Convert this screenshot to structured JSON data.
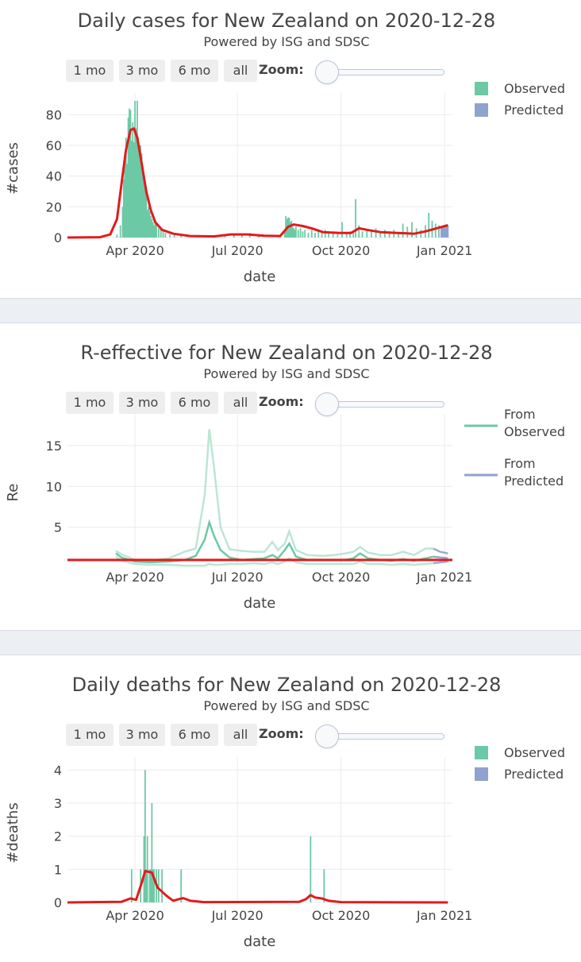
{
  "buttons": [
    "1 mo",
    "3 mo",
    "6 mo",
    "all"
  ],
  "zoom_label": "Zoom:",
  "legend": {
    "bars": [
      "Observed",
      "Predicted"
    ],
    "lines": [
      [
        "From",
        "Observed"
      ],
      [
        "From",
        "Predicted"
      ]
    ]
  },
  "colors": {
    "observed": "#6cc9a5",
    "predicted": "#8fa3cf",
    "fit": "#e31a1c",
    "band": "#b5e3cf"
  },
  "chart_data": [
    {
      "type": "bar",
      "title": "Daily cases for New Zealand on 2020-12-28",
      "subtitle": "Powered by ISG and SDSC",
      "xlabel": "date",
      "ylabel": "#cases",
      "xlim": [
        "2020-02-01",
        "2021-01-08"
      ],
      "ylim": [
        0,
        90
      ],
      "yticks": [
        0,
        20,
        40,
        60,
        80
      ],
      "xticks": [
        "Apr 2020",
        "Jul 2020",
        "Oct 2020",
        "Jan 2021"
      ],
      "grid": true,
      "legend_position": "top-right",
      "series": [
        {
          "name": "Observed",
          "points": [
            [
              "2020-03-16",
              2
            ],
            [
              "2020-03-19",
              8
            ],
            [
              "2020-03-21",
              20
            ],
            [
              "2020-03-22",
              38
            ],
            [
              "2020-03-23",
              55
            ],
            [
              "2020-03-24",
              65
            ],
            [
              "2020-03-25",
              48
            ],
            [
              "2020-03-26",
              78
            ],
            [
              "2020-03-27",
              84
            ],
            [
              "2020-03-28",
              83
            ],
            [
              "2020-03-29",
              63
            ],
            [
              "2020-03-30",
              75
            ],
            [
              "2020-03-31",
              62
            ],
            [
              "2020-04-01",
              89
            ],
            [
              "2020-04-02",
              71
            ],
            [
              "2020-04-03",
              89
            ],
            [
              "2020-04-04",
              65
            ],
            [
              "2020-04-05",
              58
            ],
            [
              "2020-04-06",
              60
            ],
            [
              "2020-04-07",
              55
            ],
            [
              "2020-04-08",
              44
            ],
            [
              "2020-04-09",
              36
            ],
            [
              "2020-04-10",
              33
            ],
            [
              "2020-04-11",
              32
            ],
            [
              "2020-04-12",
              18
            ],
            [
              "2020-04-13",
              20
            ],
            [
              "2020-04-14",
              17
            ],
            [
              "2020-04-15",
              14
            ],
            [
              "2020-04-16",
              12
            ],
            [
              "2020-04-17",
              10
            ],
            [
              "2020-04-18",
              8
            ],
            [
              "2020-04-19",
              9
            ],
            [
              "2020-04-20",
              9
            ],
            [
              "2020-04-22",
              6
            ],
            [
              "2020-04-24",
              5
            ],
            [
              "2020-04-26",
              4
            ],
            [
              "2020-04-28",
              3
            ],
            [
              "2020-05-02",
              2
            ],
            [
              "2020-05-06",
              2
            ],
            [
              "2020-05-12",
              1
            ],
            [
              "2020-06-20",
              1
            ],
            [
              "2020-06-28",
              2
            ],
            [
              "2020-07-05",
              2
            ],
            [
              "2020-07-12",
              3
            ],
            [
              "2020-07-20",
              2
            ],
            [
              "2020-08-12",
              5
            ],
            [
              "2020-08-13",
              14
            ],
            [
              "2020-08-14",
              12
            ],
            [
              "2020-08-15",
              13
            ],
            [
              "2020-08-16",
              13
            ],
            [
              "2020-08-17",
              10
            ],
            [
              "2020-08-18",
              11
            ],
            [
              "2020-08-19",
              7
            ],
            [
              "2020-08-20",
              6
            ],
            [
              "2020-08-21",
              5
            ],
            [
              "2020-08-22",
              7
            ],
            [
              "2020-08-24",
              5
            ],
            [
              "2020-08-26",
              6
            ],
            [
              "2020-08-28",
              4
            ],
            [
              "2020-08-30",
              5
            ],
            [
              "2020-09-02",
              3
            ],
            [
              "2020-09-05",
              5
            ],
            [
              "2020-09-08",
              3
            ],
            [
              "2020-09-11",
              4
            ],
            [
              "2020-09-14",
              3
            ],
            [
              "2020-09-17",
              5
            ],
            [
              "2020-09-20",
              3
            ],
            [
              "2020-09-24",
              4
            ],
            [
              "2020-09-28",
              3
            ],
            [
              "2020-10-02",
              10
            ],
            [
              "2020-10-06",
              3
            ],
            [
              "2020-10-09",
              4
            ],
            [
              "2020-10-12",
              3
            ],
            [
              "2020-10-14",
              25
            ],
            [
              "2020-10-17",
              8
            ],
            [
              "2020-10-20",
              4
            ],
            [
              "2020-10-24",
              5
            ],
            [
              "2020-10-28",
              4
            ],
            [
              "2020-11-01",
              6
            ],
            [
              "2020-11-05",
              3
            ],
            [
              "2020-11-09",
              5
            ],
            [
              "2020-11-13",
              4
            ],
            [
              "2020-11-17",
              5
            ],
            [
              "2020-11-21",
              3
            ],
            [
              "2020-11-25",
              9
            ],
            [
              "2020-11-29",
              7
            ],
            [
              "2020-12-03",
              10
            ],
            [
              "2020-12-07",
              6
            ],
            [
              "2020-12-11",
              5
            ],
            [
              "2020-12-15",
              8
            ],
            [
              "2020-12-18",
              16
            ],
            [
              "2020-12-21",
              11
            ],
            [
              "2020-12-24",
              9
            ],
            [
              "2020-12-27",
              8
            ]
          ]
        },
        {
          "name": "Predicted",
          "points": [
            [
              "2020-12-29",
              7
            ],
            [
              "2020-12-30",
              7
            ],
            [
              "2020-12-31",
              8
            ],
            [
              "2021-01-01",
              8
            ],
            [
              "2021-01-02",
              8
            ],
            [
              "2021-01-03",
              8
            ],
            [
              "2021-01-04",
              8
            ]
          ]
        }
      ],
      "fit_line": [
        [
          "2020-02-01",
          0
        ],
        [
          "2020-03-01",
          0.2
        ],
        [
          "2020-03-10",
          2
        ],
        [
          "2020-03-16",
          12
        ],
        [
          "2020-03-20",
          35
        ],
        [
          "2020-03-24",
          57
        ],
        [
          "2020-03-28",
          70
        ],
        [
          "2020-03-31",
          71
        ],
        [
          "2020-04-03",
          65
        ],
        [
          "2020-04-07",
          48
        ],
        [
          "2020-04-11",
          30
        ],
        [
          "2020-04-15",
          18
        ],
        [
          "2020-04-19",
          10
        ],
        [
          "2020-04-25",
          5
        ],
        [
          "2020-05-05",
          2.5
        ],
        [
          "2020-05-20",
          1
        ],
        [
          "2020-06-10",
          0.7
        ],
        [
          "2020-06-25",
          2
        ],
        [
          "2020-07-10",
          2
        ],
        [
          "2020-07-25",
          1.2
        ],
        [
          "2020-08-08",
          1
        ],
        [
          "2020-08-15",
          7
        ],
        [
          "2020-08-20",
          8.5
        ],
        [
          "2020-08-28",
          7.5
        ],
        [
          "2020-09-05",
          6
        ],
        [
          "2020-09-15",
          3.5
        ],
        [
          "2020-09-30",
          3
        ],
        [
          "2020-10-10",
          3
        ],
        [
          "2020-10-17",
          6
        ],
        [
          "2020-10-24",
          5
        ],
        [
          "2020-11-05",
          3.5
        ],
        [
          "2020-11-20",
          3
        ],
        [
          "2020-12-05",
          2.5
        ],
        [
          "2020-12-15",
          4
        ],
        [
          "2020-12-25",
          6
        ],
        [
          "2021-01-04",
          8
        ]
      ]
    },
    {
      "type": "line",
      "title": "R-effective for New Zealand on 2020-12-28",
      "subtitle": "Powered by ISG and SDSC",
      "xlabel": "date",
      "ylabel": "Re",
      "xlim": [
        "2020-02-01",
        "2021-01-08"
      ],
      "ylim": [
        0.5,
        18
      ],
      "yticks": [
        5,
        10,
        15
      ],
      "xticks": [
        "Apr 2020",
        "Jul 2020",
        "Oct 2020",
        "Jan 2021"
      ],
      "grid": true,
      "legend_position": "top-right",
      "threshold": 1,
      "series": [
        {
          "name": "From Observed",
          "x": [
            "2020-03-15",
            "2020-03-20",
            "2020-04-01",
            "2020-04-15",
            "2020-05-01",
            "2020-05-15",
            "2020-05-25",
            "2020-06-02",
            "2020-06-06",
            "2020-06-10",
            "2020-06-16",
            "2020-06-24",
            "2020-07-05",
            "2020-07-15",
            "2020-07-25",
            "2020-08-01",
            "2020-08-06",
            "2020-08-12",
            "2020-08-16",
            "2020-08-22",
            "2020-09-01",
            "2020-09-15",
            "2020-09-25",
            "2020-10-05",
            "2020-10-12",
            "2020-10-18",
            "2020-10-25",
            "2020-11-05",
            "2020-11-15",
            "2020-11-25",
            "2020-12-05",
            "2020-12-15",
            "2020-12-22"
          ],
          "center": [
            1.8,
            1.3,
            0.8,
            0.7,
            0.8,
            1.0,
            1.5,
            3.5,
            5.6,
            4.0,
            2.2,
            1.3,
            1.0,
            1.1,
            1.2,
            1.6,
            1.2,
            2.2,
            3.0,
            1.4,
            1.0,
            1.0,
            1.0,
            1.0,
            1.2,
            1.8,
            1.2,
            1.0,
            0.9,
            1.1,
            0.9,
            1.2,
            1.4
          ],
          "upper": [
            2.1,
            1.7,
            1.0,
            0.9,
            1.2,
            2.0,
            2.4,
            9.0,
            17.0,
            12.5,
            5.0,
            2.3,
            2.1,
            2.0,
            2.0,
            3.2,
            2.2,
            3.0,
            4.5,
            2.2,
            1.6,
            1.5,
            1.6,
            1.8,
            2.0,
            2.6,
            1.9,
            1.6,
            1.6,
            2.0,
            1.6,
            2.4,
            2.4
          ],
          "lower": [
            1.4,
            0.9,
            0.5,
            0.4,
            0.4,
            0.3,
            0.3,
            0.3,
            0.5,
            0.4,
            0.4,
            0.5,
            0.5,
            0.6,
            0.5,
            0.7,
            0.5,
            0.8,
            1.2,
            0.7,
            0.5,
            0.5,
            0.5,
            0.5,
            0.5,
            0.8,
            0.5,
            0.5,
            0.4,
            0.5,
            0.4,
            0.5,
            0.6
          ]
        },
        {
          "name": "From Predicted",
          "x": [
            "2020-12-22",
            "2020-12-28",
            "2021-01-04"
          ],
          "center": [
            1.4,
            1.3,
            1.2
          ],
          "upper": [
            2.4,
            2.0,
            1.8
          ],
          "lower": [
            0.6,
            0.7,
            0.8
          ]
        }
      ]
    },
    {
      "type": "bar",
      "title": "Daily deaths for New Zealand on 2020-12-28",
      "subtitle": "Powered by ISG and SDSC",
      "xlabel": "date",
      "ylabel": "#deaths",
      "xlim": [
        "2020-02-01",
        "2021-01-08"
      ],
      "ylim": [
        0,
        4.2
      ],
      "yticks": [
        0,
        1,
        2,
        3,
        4
      ],
      "xticks": [
        "Apr 2020",
        "Jul 2020",
        "Oct 2020",
        "Jan 2021"
      ],
      "grid": true,
      "legend_position": "top-right",
      "series": [
        {
          "name": "Observed",
          "points": [
            [
              "2020-03-29",
              1
            ],
            [
              "2020-04-06",
              1
            ],
            [
              "2020-04-09",
              2
            ],
            [
              "2020-04-10",
              4
            ],
            [
              "2020-04-11",
              1
            ],
            [
              "2020-04-12",
              2
            ],
            [
              "2020-04-14",
              1
            ],
            [
              "2020-04-15",
              1
            ],
            [
              "2020-04-16",
              3
            ],
            [
              "2020-04-17",
              1
            ],
            [
              "2020-04-18",
              1
            ],
            [
              "2020-04-20",
              1
            ],
            [
              "2020-04-22",
              1
            ],
            [
              "2020-04-25",
              1
            ],
            [
              "2020-05-12",
              1
            ],
            [
              "2020-09-04",
              2
            ],
            [
              "2020-09-16",
              1
            ]
          ]
        },
        {
          "name": "Predicted",
          "points": []
        }
      ],
      "fit_line": [
        [
          "2020-02-01",
          0
        ],
        [
          "2020-03-20",
          0.02
        ],
        [
          "2020-03-28",
          0.12
        ],
        [
          "2020-04-02",
          0.08
        ],
        [
          "2020-04-07",
          0.6
        ],
        [
          "2020-04-10",
          0.95
        ],
        [
          "2020-04-16",
          0.9
        ],
        [
          "2020-04-21",
          0.45
        ],
        [
          "2020-04-29",
          0.2
        ],
        [
          "2020-05-05",
          0.05
        ],
        [
          "2020-05-10",
          0.1
        ],
        [
          "2020-05-14",
          0.13
        ],
        [
          "2020-05-20",
          0.05
        ],
        [
          "2020-06-01",
          0.01
        ],
        [
          "2020-08-25",
          0.02
        ],
        [
          "2020-08-31",
          0.1
        ],
        [
          "2020-09-04",
          0.22
        ],
        [
          "2020-09-08",
          0.15
        ],
        [
          "2020-09-14",
          0.12
        ],
        [
          "2020-09-20",
          0.05
        ],
        [
          "2020-10-01",
          0.01
        ],
        [
          "2021-01-04",
          0
        ]
      ]
    }
  ]
}
